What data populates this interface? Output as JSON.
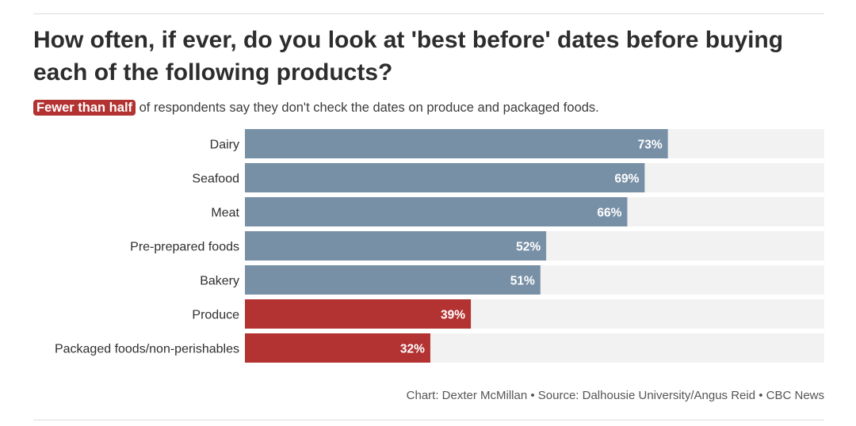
{
  "title": "How often, if ever, do you look at 'best before' dates before buying each of the following products?",
  "subtitle": {
    "highlight": "Fewer than half",
    "text": " of respondents say they don't check the dates on produce and packaged foods."
  },
  "footer": "Chart: Dexter McMillan • Source: Dalhousie University/Angus Reid • CBC News",
  "colors": {
    "default_bar": "#7890a6",
    "highlight_bar": "#b33232",
    "track": "#f2f2f2",
    "value_text": "#ffffff"
  },
  "chart_data": {
    "type": "bar",
    "orientation": "horizontal",
    "categories": [
      "Dairy",
      "Seafood",
      "Meat",
      "Pre-prepared foods",
      "Bakery",
      "Produce",
      "Packaged foods/non-perishables"
    ],
    "values": [
      73,
      69,
      66,
      52,
      51,
      39,
      32
    ],
    "value_labels": [
      "73%",
      "69%",
      "66%",
      "52%",
      "51%",
      "39%",
      "32%"
    ],
    "highlighted": [
      false,
      false,
      false,
      false,
      false,
      true,
      true
    ],
    "xlim": [
      0,
      100
    ],
    "grid": false,
    "legend": "none"
  }
}
